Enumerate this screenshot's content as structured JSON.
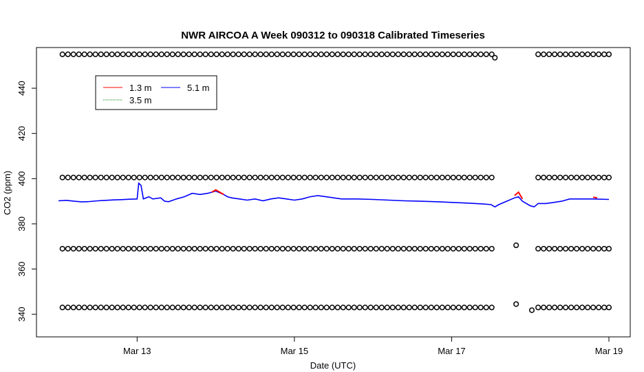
{
  "chart_data": {
    "type": "line",
    "title": "NWR AIRCOA A  Week 090312 to 090318  Calibrated Timeseries",
    "xlabel": "Date (UTC)",
    "ylabel": "CO2 (ppm)",
    "xlim": [
      12.0,
      19.0
    ],
    "ylim": [
      330,
      458
    ],
    "x_ticks": [
      {
        "value": 13,
        "label": "Mar 13"
      },
      {
        "value": 15,
        "label": "Mar 15"
      },
      {
        "value": 17,
        "label": "Mar 17"
      },
      {
        "value": 19,
        "label": "Mar 19"
      }
    ],
    "y_ticks": [
      340,
      360,
      380,
      400,
      420,
      440
    ],
    "legend": {
      "position": "top-left",
      "entries": [
        {
          "name": "1.3 m",
          "color": "#ff0000"
        },
        {
          "name": "5.1 m",
          "color": "#0000ff"
        },
        {
          "name": "3.5 m",
          "color": "#008000"
        }
      ]
    },
    "series": [
      {
        "name": "5.1 m",
        "color": "#0000ff",
        "points": [
          [
            12.0,
            390.2
          ],
          [
            12.1,
            390.4
          ],
          [
            12.2,
            390.0
          ],
          [
            12.3,
            389.7
          ],
          [
            12.4,
            389.9
          ],
          [
            12.5,
            390.2
          ],
          [
            12.6,
            390.4
          ],
          [
            12.7,
            390.6
          ],
          [
            12.8,
            390.7
          ],
          [
            12.9,
            390.9
          ],
          [
            13.0,
            391.0
          ],
          [
            13.02,
            398.0
          ],
          [
            13.05,
            397.0
          ],
          [
            13.08,
            391.0
          ],
          [
            13.15,
            392.0
          ],
          [
            13.2,
            391.0
          ],
          [
            13.3,
            391.5
          ],
          [
            13.35,
            390.0
          ],
          [
            13.4,
            389.8
          ],
          [
            13.5,
            391.0
          ],
          [
            13.6,
            392.0
          ],
          [
            13.7,
            393.5
          ],
          [
            13.8,
            393.0
          ],
          [
            13.9,
            393.5
          ],
          [
            14.0,
            394.5
          ],
          [
            14.1,
            393.0
          ],
          [
            14.15,
            392.0
          ],
          [
            14.2,
            391.5
          ],
          [
            14.3,
            391.0
          ],
          [
            14.4,
            390.5
          ],
          [
            14.5,
            391.0
          ],
          [
            14.6,
            390.2
          ],
          [
            14.7,
            391.0
          ],
          [
            14.8,
            391.5
          ],
          [
            14.9,
            391.0
          ],
          [
            15.0,
            390.5
          ],
          [
            15.1,
            391.0
          ],
          [
            15.2,
            392.0
          ],
          [
            15.3,
            392.5
          ],
          [
            15.4,
            392.0
          ],
          [
            15.5,
            391.5
          ],
          [
            15.6,
            391.0
          ],
          [
            15.8,
            391.0
          ],
          [
            16.0,
            390.8
          ],
          [
            16.2,
            390.5
          ],
          [
            16.4,
            390.2
          ],
          [
            16.6,
            390.0
          ],
          [
            16.8,
            389.8
          ],
          [
            17.0,
            389.5
          ],
          [
            17.2,
            389.2
          ],
          [
            17.3,
            389.0
          ],
          [
            17.4,
            388.8
          ],
          [
            17.5,
            388.5
          ],
          [
            17.55,
            387.5
          ],
          [
            17.6,
            388.5
          ],
          [
            17.7,
            390.0
          ],
          [
            17.8,
            391.5
          ],
          [
            17.85,
            392.0
          ],
          [
            17.9,
            390.0
          ],
          [
            18.0,
            388.0
          ],
          [
            18.05,
            387.5
          ],
          [
            18.1,
            389.0
          ],
          [
            18.2,
            389.0
          ],
          [
            18.3,
            389.5
          ],
          [
            18.4,
            390.0
          ],
          [
            18.5,
            391.0
          ],
          [
            18.6,
            391.0
          ],
          [
            18.8,
            391.0
          ],
          [
            19.0,
            390.8
          ]
        ]
      },
      {
        "name": "1.3 m",
        "color": "#ff0000",
        "points": [
          [
            13.95,
            394.0
          ],
          [
            14.0,
            395.0
          ],
          [
            14.05,
            394.0
          ],
          [
            14.1,
            393.0
          ],
          [
            17.8,
            392.5
          ],
          [
            17.85,
            394.0
          ],
          [
            17.9,
            391.0
          ],
          [
            18.8,
            391.8
          ],
          [
            18.85,
            391.5
          ]
        ]
      }
    ],
    "calibration_points": [
      {
        "ys": [
          455,
          400.5,
          369,
          343
        ],
        "xs": [
          12.05,
          12.12,
          12.19,
          12.26,
          12.33,
          12.4,
          12.47,
          12.54,
          12.61,
          12.68,
          12.75,
          12.82,
          12.89,
          12.96,
          13.03,
          13.1,
          13.17,
          13.24,
          13.31,
          13.38,
          13.45,
          13.52,
          13.59,
          13.66,
          13.73,
          13.8,
          13.87,
          13.94,
          14.01,
          14.08,
          14.15,
          14.22,
          14.29,
          14.36,
          14.43,
          14.5,
          14.57,
          14.64,
          14.71,
          14.78,
          14.85,
          14.92,
          14.99,
          15.06,
          15.13,
          15.2,
          15.27,
          15.34,
          15.41,
          15.48,
          15.55,
          15.62,
          15.69,
          15.76,
          15.83,
          15.9,
          15.97,
          16.04,
          16.11,
          16.18,
          16.25,
          16.32,
          16.39,
          16.46,
          16.53,
          16.6,
          16.67,
          16.74,
          16.81,
          16.88,
          16.95,
          17.02,
          17.09,
          17.16,
          17.23,
          17.3,
          17.37,
          17.44,
          17.51,
          18.1,
          18.17,
          18.24,
          18.31,
          18.38,
          18.45,
          18.52,
          18.59,
          18.66,
          18.73,
          18.8,
          18.87,
          18.94,
          19.0
        ]
      },
      {
        "ys": [
          453.5
        ],
        "xs": [
          17.55
        ]
      },
      {
        "ys": [
          370.5,
          344.5
        ],
        "xs": [
          17.82
        ]
      },
      {
        "ys": [
          341.8
        ],
        "xs": [
          18.02
        ]
      }
    ]
  }
}
